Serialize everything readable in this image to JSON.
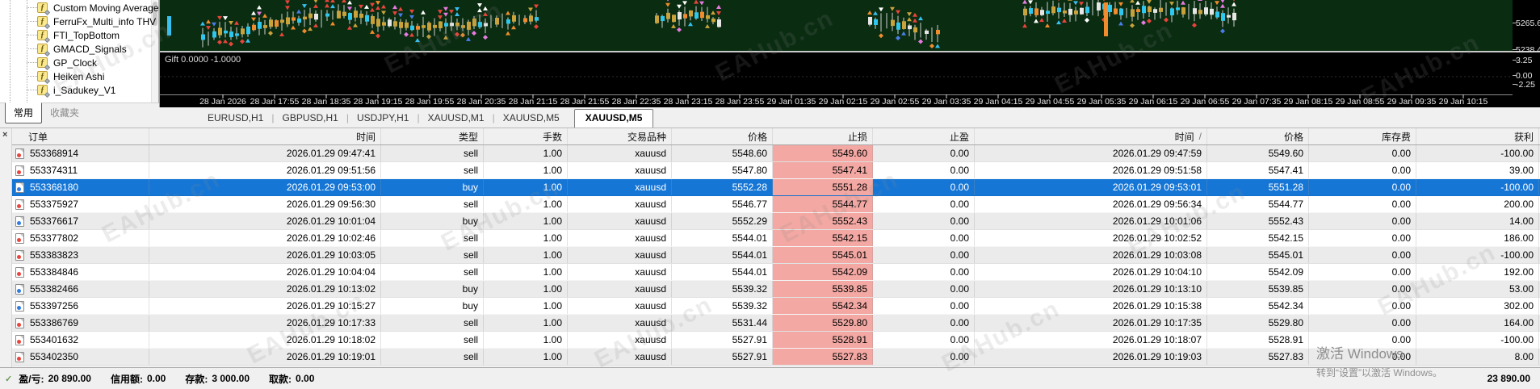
{
  "sidebar": {
    "items": [
      "Custom Moving Average",
      "FerruFx_Multi_info THV",
      "FTI_TopBottom",
      "GMACD_Signals",
      "GP_Clock",
      "Heiken Ashi",
      "i_Sadukey_V1"
    ],
    "tabs": [
      {
        "label": "常用",
        "active": true
      },
      {
        "label": "收藏夹",
        "active": false
      }
    ]
  },
  "chart": {
    "indicator_label": "Gift 0.0000 -1.0000",
    "scale_labels": [
      "5265.6",
      "5238.4",
      "3.25",
      "0.00",
      "-2.25"
    ],
    "time_axis": [
      "28 Jan 2026",
      "28 Jan 17:55",
      "28 Jan 18:35",
      "28 Jan 19:15",
      "28 Jan 19:55",
      "28 Jan 20:35",
      "28 Jan 21:15",
      "28 Jan 21:55",
      "28 Jan 22:35",
      "28 Jan 23:15",
      "28 Jan 23:55",
      "29 Jan 01:35",
      "29 Jan 02:15",
      "29 Jan 02:55",
      "29 Jan 03:35",
      "29 Jan 04:15",
      "29 Jan 04:55",
      "29 Jan 05:35",
      "29 Jan 06:15",
      "29 Jan 06:55",
      "29 Jan 07:35",
      "29 Jan 08:15",
      "29 Jan 08:55",
      "29 Jan 09:35",
      "29 Jan 10:15"
    ]
  },
  "chart_tabs": [
    {
      "label": "EURUSD,H1"
    },
    {
      "label": "GBPUSD,H1"
    },
    {
      "label": "USDJPY,H1"
    },
    {
      "label": "XAUUSD,M1"
    },
    {
      "label": "XAUUSD,M5"
    },
    {
      "label": "XAUUSD,M5",
      "active": true
    }
  ],
  "history": {
    "close_button": "×",
    "columns": [
      "订单",
      "时间",
      "类型",
      "手数",
      "交易品种",
      "价格",
      "止损",
      "止盈",
      "时间",
      "价格",
      "库存费",
      "获利"
    ],
    "sort_indicator": "/",
    "rows": [
      {
        "id": "553368914",
        "open_time": "2026.01.29 09:47:41",
        "type": "sell",
        "lots": "1.00",
        "symbol": "xauusd",
        "open_price": "5548.60",
        "sl": "5549.60",
        "tp": "0.00",
        "close_time": "2026.01.29 09:47:59",
        "close_price": "5549.60",
        "swap": "0.00",
        "profit": "-100.00"
      },
      {
        "id": "553374311",
        "open_time": "2026.01.29 09:51:56",
        "type": "sell",
        "lots": "1.00",
        "symbol": "xauusd",
        "open_price": "5547.80",
        "sl": "5547.41",
        "tp": "0.00",
        "close_time": "2026.01.29 09:51:58",
        "close_price": "5547.41",
        "swap": "0.00",
        "profit": "39.00"
      },
      {
        "id": "553368180",
        "open_time": "2026.01.29 09:53:00",
        "type": "buy",
        "lots": "1.00",
        "symbol": "xauusd",
        "open_price": "5552.28",
        "sl": "5551.28",
        "tp": "0.00",
        "close_time": "2026.01.29 09:53:01",
        "close_price": "5551.28",
        "swap": "0.00",
        "profit": "-100.00",
        "selected": true
      },
      {
        "id": "553375927",
        "open_time": "2026.01.29 09:56:30",
        "type": "sell",
        "lots": "1.00",
        "symbol": "xauusd",
        "open_price": "5546.77",
        "sl": "5544.77",
        "tp": "0.00",
        "close_time": "2026.01.29 09:56:34",
        "close_price": "5544.77",
        "swap": "0.00",
        "profit": "200.00"
      },
      {
        "id": "553376617",
        "open_time": "2026.01.29 10:01:04",
        "type": "buy",
        "lots": "1.00",
        "symbol": "xauusd",
        "open_price": "5552.29",
        "sl": "5552.43",
        "tp": "0.00",
        "close_time": "2026.01.29 10:01:06",
        "close_price": "5552.43",
        "swap": "0.00",
        "profit": "14.00"
      },
      {
        "id": "553377802",
        "open_time": "2026.01.29 10:02:46",
        "type": "sell",
        "lots": "1.00",
        "symbol": "xauusd",
        "open_price": "5544.01",
        "sl": "5542.15",
        "tp": "0.00",
        "close_time": "2026.01.29 10:02:52",
        "close_price": "5542.15",
        "swap": "0.00",
        "profit": "186.00"
      },
      {
        "id": "553383823",
        "open_time": "2026.01.29 10:03:05",
        "type": "sell",
        "lots": "1.00",
        "symbol": "xauusd",
        "open_price": "5544.01",
        "sl": "5545.01",
        "tp": "0.00",
        "close_time": "2026.01.29 10:03:08",
        "close_price": "5545.01",
        "swap": "0.00",
        "profit": "-100.00"
      },
      {
        "id": "553384846",
        "open_time": "2026.01.29 10:04:04",
        "type": "sell",
        "lots": "1.00",
        "symbol": "xauusd",
        "open_price": "5544.01",
        "sl": "5542.09",
        "tp": "0.00",
        "close_time": "2026.01.29 10:04:10",
        "close_price": "5542.09",
        "swap": "0.00",
        "profit": "192.00"
      },
      {
        "id": "553382466",
        "open_time": "2026.01.29 10:13:02",
        "type": "buy",
        "lots": "1.00",
        "symbol": "xauusd",
        "open_price": "5539.32",
        "sl": "5539.85",
        "tp": "0.00",
        "close_time": "2026.01.29 10:13:10",
        "close_price": "5539.85",
        "swap": "0.00",
        "profit": "53.00"
      },
      {
        "id": "553397256",
        "open_time": "2026.01.29 10:15:27",
        "type": "buy",
        "lots": "1.00",
        "symbol": "xauusd",
        "open_price": "5539.32",
        "sl": "5542.34",
        "tp": "0.00",
        "close_time": "2026.01.29 10:15:38",
        "close_price": "5542.34",
        "swap": "0.00",
        "profit": "302.00"
      },
      {
        "id": "553386769",
        "open_time": "2026.01.29 10:17:33",
        "type": "sell",
        "lots": "1.00",
        "symbol": "xauusd",
        "open_price": "5531.44",
        "sl": "5529.80",
        "tp": "0.00",
        "close_time": "2026.01.29 10:17:35",
        "close_price": "5529.80",
        "swap": "0.00",
        "profit": "164.00"
      },
      {
        "id": "553401632",
        "open_time": "2026.01.29 10:18:02",
        "type": "sell",
        "lots": "1.00",
        "symbol": "xauusd",
        "open_price": "5527.91",
        "sl": "5528.91",
        "tp": "0.00",
        "close_time": "2026.01.29 10:18:07",
        "close_price": "5528.91",
        "swap": "0.00",
        "profit": "-100.00"
      },
      {
        "id": "553402350",
        "open_time": "2026.01.29 10:19:01",
        "type": "sell",
        "lots": "1.00",
        "symbol": "xauusd",
        "open_price": "5527.91",
        "sl": "5527.83",
        "tp": "0.00",
        "close_time": "2026.01.29 10:19:03",
        "close_price": "5527.83",
        "swap": "0.00",
        "profit": "8.00"
      }
    ]
  },
  "summary": {
    "profit_label": "盈/亏:",
    "profit_value": "20 890.00",
    "credit_label": "信用额:",
    "credit_value": "0.00",
    "deposit_label": "存款:",
    "deposit_value": "3 000.00",
    "withdrawal_label": "取款:",
    "withdrawal_value": "0.00",
    "total": "23 890.00"
  },
  "watermark": {
    "text": "EAHub.cn"
  },
  "activation": {
    "line1": "激活 Windows",
    "line2": "转到“设置”以激活 Windows。"
  },
  "icons": {
    "function": "ƒ",
    "tab_separator": "|",
    "summary_check": "✓"
  },
  "colors": {
    "selection": "#1576d6",
    "stop_loss_bg": "#f3a8a3",
    "sell": "#e8453c",
    "buy": "#2f7de0"
  }
}
